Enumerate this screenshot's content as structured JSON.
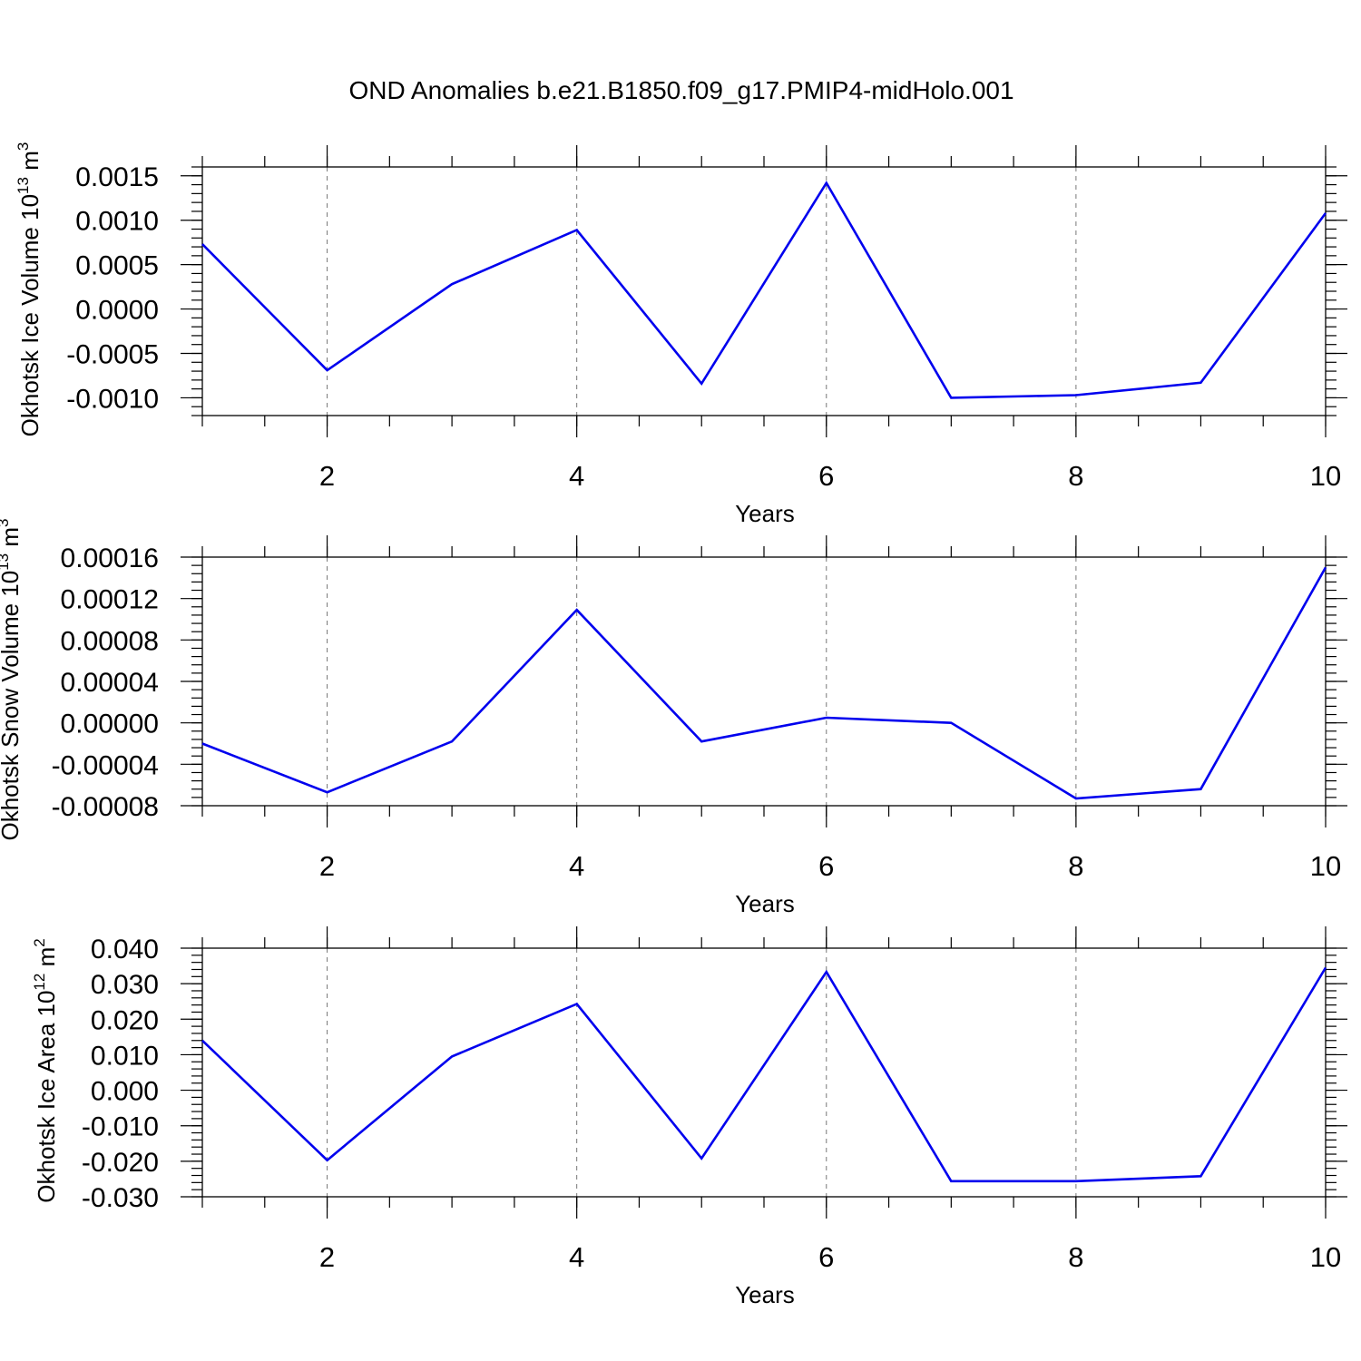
{
  "title": "OND Anomalies b.e21.B1850.f09_g17.PMIP4-midHolo.001",
  "chart_data": [
    {
      "type": "line",
      "ylabel": "Okhotsk Ice Volume 10",
      "ylabel_exp": "13",
      "ylabel_unit": "m",
      "ylabel_unit_exp": "3",
      "xlabel": "Years",
      "xlim": [
        1,
        10
      ],
      "ylim": [
        -0.0012,
        0.0016
      ],
      "x": [
        1,
        2,
        3,
        4,
        5,
        6,
        7,
        8,
        9,
        10
      ],
      "values": [
        0.00073,
        -0.00069,
        0.00028,
        0.00089,
        -0.00084,
        0.00142,
        -0.001,
        -0.00097,
        -0.00083,
        0.00108
      ],
      "x_ticks": [
        2,
        4,
        6,
        8,
        10
      ],
      "x_tick_labels": [
        "2",
        "4",
        "6",
        "8",
        "10"
      ],
      "y_ticks": [
        0.0015,
        0.001,
        0.0005,
        0.0,
        -0.0005,
        -0.001
      ],
      "y_tick_labels": [
        "0.0015",
        "0.0010",
        "0.0005",
        "0.0000",
        "-0.0005",
        "-0.0010"
      ],
      "grid": "vertical-dashed",
      "color": "#0000ee"
    },
    {
      "type": "line",
      "ylabel": "Okhotsk Snow Volume 10",
      "ylabel_exp": "13",
      "ylabel_unit": "m",
      "ylabel_unit_exp": "3",
      "xlabel": "Years",
      "xlim": [
        1,
        10
      ],
      "ylim": [
        -8e-05,
        0.00016
      ],
      "x": [
        1,
        2,
        3,
        4,
        5,
        6,
        7,
        8,
        9,
        10
      ],
      "values": [
        -2e-05,
        -6.7e-05,
        -1.8e-05,
        0.000109,
        -1.8e-05,
        5e-06,
        0.0,
        -7.3e-05,
        -6.4e-05,
        0.00015
      ],
      "x_ticks": [
        2,
        4,
        6,
        8,
        10
      ],
      "x_tick_labels": [
        "2",
        "4",
        "6",
        "8",
        "10"
      ],
      "y_ticks": [
        0.00016,
        0.00012,
        8e-05,
        4e-05,
        0.0,
        -4e-05,
        -8e-05
      ],
      "y_tick_labels": [
        "0.00016",
        "0.00012",
        "0.00008",
        "0.00004",
        "0.00000",
        "-0.00004",
        "-0.00008"
      ],
      "grid": "vertical-dashed",
      "color": "#0000ee"
    },
    {
      "type": "line",
      "ylabel": "Okhotsk Ice Area 10",
      "ylabel_exp": "12",
      "ylabel_unit": "m",
      "ylabel_unit_exp": "2",
      "xlabel": "Years",
      "xlim": [
        1,
        10
      ],
      "ylim": [
        -0.03,
        0.04
      ],
      "x": [
        1,
        2,
        3,
        4,
        5,
        6,
        7,
        8,
        9,
        10
      ],
      "values": [
        0.014,
        -0.0197,
        0.0095,
        0.0243,
        -0.0192,
        0.0333,
        -0.0256,
        -0.0256,
        -0.0242,
        0.0345
      ],
      "x_ticks": [
        2,
        4,
        6,
        8,
        10
      ],
      "x_tick_labels": [
        "2",
        "4",
        "6",
        "8",
        "10"
      ],
      "y_ticks": [
        0.04,
        0.03,
        0.02,
        0.01,
        0.0,
        -0.01,
        -0.02,
        -0.03
      ],
      "y_tick_labels": [
        "0.040",
        "0.030",
        "0.020",
        "0.010",
        "0.000",
        "-0.010",
        "-0.020",
        "-0.030"
      ],
      "grid": "vertical-dashed",
      "color": "#0000ee"
    }
  ]
}
